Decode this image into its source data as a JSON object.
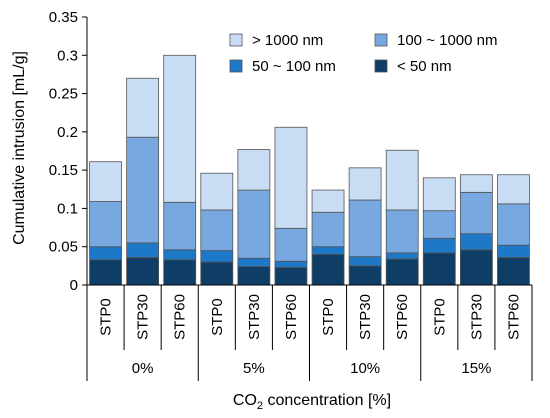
{
  "chart_data": {
    "type": "bar",
    "stacked": true,
    "ylabel": "Cumulative intrusion [mL/g]",
    "xlabel": {
      "prefix": "CO",
      "subscript": "2",
      "suffix": " concentration [%]"
    },
    "ylim": [
      0,
      0.35
    ],
    "yticks": [
      "0",
      "0.05",
      "0.1",
      "0.15",
      "0.2",
      "0.25",
      "0.3",
      "0.35"
    ],
    "groups": [
      "0%",
      "5%",
      "10%",
      "15%"
    ],
    "categories": [
      "STP0",
      "STP30",
      "STP60",
      "STP0",
      "STP30",
      "STP60",
      "STP0",
      "STP30",
      "STP60",
      "STP0",
      "STP30",
      "STP60"
    ],
    "series": [
      {
        "name": "< 50 nm",
        "color": "#0e3d66",
        "values": [
          0.033,
          0.036,
          0.033,
          0.03,
          0.024,
          0.023,
          0.04,
          0.025,
          0.034,
          0.042,
          0.046,
          0.036
        ]
      },
      {
        "name": "50 ~ 100 nm",
        "color": "#1e78c8",
        "values": [
          0.017,
          0.019,
          0.013,
          0.015,
          0.011,
          0.008,
          0.01,
          0.012,
          0.008,
          0.019,
          0.021,
          0.016
        ]
      },
      {
        "name": "100 ~ 1000 nm",
        "color": "#78a8e0",
        "values": [
          0.059,
          0.138,
          0.062,
          0.053,
          0.089,
          0.043,
          0.045,
          0.074,
          0.056,
          0.036,
          0.054,
          0.054
        ]
      },
      {
        "name": "> 1000 nm",
        "color": "#c8ddf3",
        "values": [
          0.052,
          0.077,
          0.192,
          0.048,
          0.053,
          0.132,
          0.029,
          0.042,
          0.078,
          0.043,
          0.023,
          0.038
        ]
      }
    ],
    "legend": {
      "placement": "top-right",
      "order": [
        "> 1000 nm",
        "100 ~ 1000 nm",
        "50 ~ 100 nm",
        "< 50 nm"
      ]
    }
  }
}
